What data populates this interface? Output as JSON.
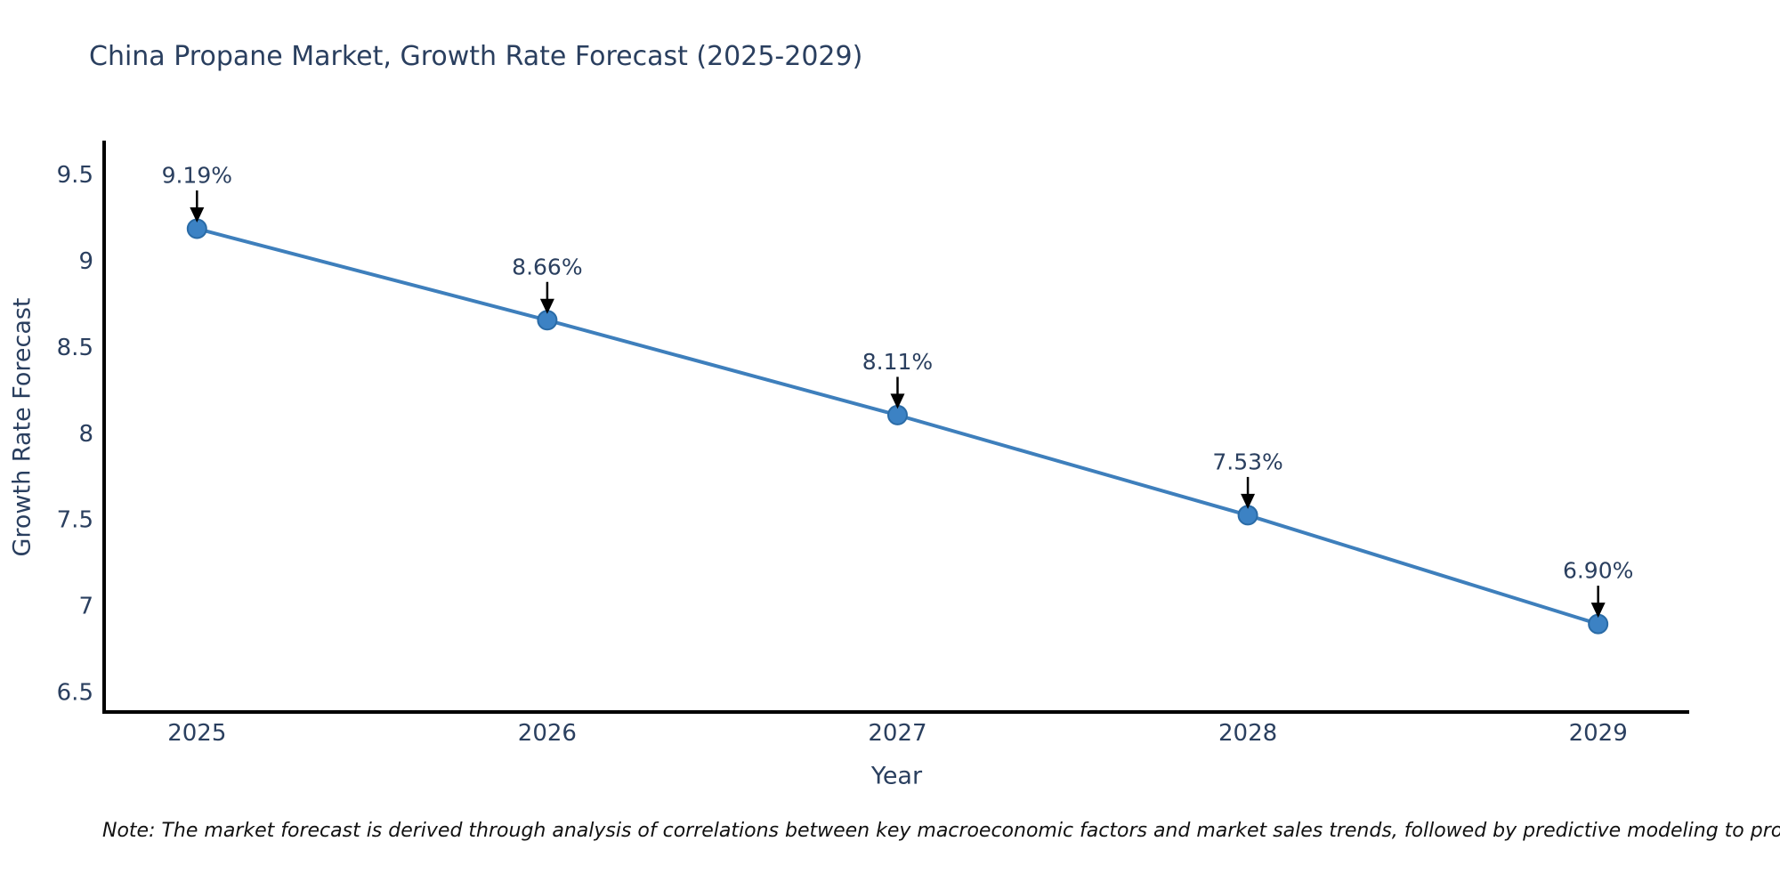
{
  "title": "China Propane Market, Growth Rate Forecast (2025-2029)",
  "note": "Note: The market forecast is derived through analysis of correlations between key macroeconomic factors and market sales trends, followed by predictive modeling to project future sales",
  "chart_data": {
    "type": "line",
    "title": "China Propane Market, Growth Rate Forecast (2025-2029)",
    "x": [
      2025,
      2026,
      2027,
      2028,
      2029
    ],
    "x_tick_labels": [
      "2025",
      "2026",
      "2027",
      "2028",
      "2029"
    ],
    "series": [
      {
        "name": "Growth Rate Forecast",
        "values": [
          9.19,
          8.66,
          8.11,
          7.53,
          6.9
        ]
      }
    ],
    "point_labels": [
      "9.19%",
      "8.66%",
      "8.11%",
      "7.53%",
      "6.90%"
    ],
    "xlabel": "Year",
    "ylabel": "Growth Rate Forecast",
    "ytick_labels": [
      "6.5",
      "7",
      "7.5",
      "8",
      "8.5",
      "9",
      "9.5"
    ],
    "ytick_values": [
      6.5,
      7,
      7.5,
      8,
      8.5,
      9,
      9.5
    ],
    "xlim": [
      2024.735,
      2029.26
    ],
    "ylim": [
      6.39,
      9.69
    ],
    "grid": false,
    "legend_position": "none",
    "annotation_style": "black-arrow-pointing-down-to-point",
    "colors": {
      "line": "#3e7fbc",
      "marker_fill": "#3c82c4",
      "marker_edge": "#2a6ba6",
      "axis_line": "#000000",
      "tick_text": "#2a3f5f",
      "axis_title_text": "#2a3f5f",
      "annotation_text": "#2a3f5f",
      "annotation_arrow": "#000000",
      "background": "#ffffff"
    }
  }
}
